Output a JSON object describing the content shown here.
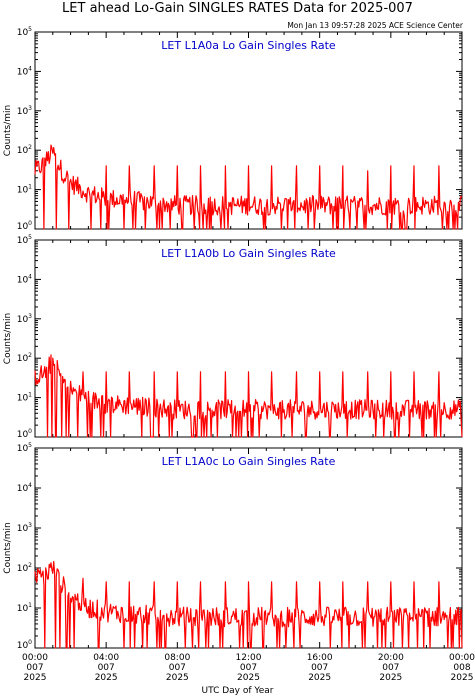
{
  "title": "LET ahead Lo-Gain SINGLES RATES Data for 2025-007",
  "timestamp": "Mon Jan 13 09:57:28 2025 ACE Science Center",
  "colors": {
    "data": "#ff0000",
    "panel_title": "#0000cc",
    "axes": "#000000"
  },
  "chart_data": [
    {
      "type": "line",
      "title": "LET L1A0a Lo Gain Singles Rate",
      "ylabel": "Counts/min",
      "xlabel": "UTC Day of Year",
      "yscale": "log",
      "ylim": [
        1,
        100000
      ],
      "xlim": [
        0,
        24
      ],
      "grid": false,
      "description_points_hours": [
        0,
        0.5,
        1,
        1.5,
        2,
        3,
        4,
        6,
        8,
        12,
        16,
        20,
        24
      ],
      "values": [
        30,
        45,
        90,
        30,
        15,
        8,
        6,
        5,
        4,
        4,
        4,
        4,
        4
      ],
      "spikes_at_hours": [
        4,
        5.3,
        6.7,
        8,
        9.3,
        10.7,
        12,
        13.3,
        14.7,
        16,
        17.3,
        18.7,
        20,
        21.3,
        22.7
      ],
      "spike_values": [
        40,
        40,
        40,
        40,
        40,
        40,
        40,
        40,
        40,
        40,
        40,
        30,
        40,
        40,
        40
      ]
    },
    {
      "type": "line",
      "title": "LET L1A0b Lo Gain Singles Rate",
      "ylabel": "Counts/min",
      "xlabel": "UTC Day of Year",
      "yscale": "log",
      "ylim": [
        1,
        100000
      ],
      "xlim": [
        0,
        24
      ],
      "grid": false,
      "description_points_hours": [
        0,
        0.5,
        1,
        1.5,
        2,
        3,
        4,
        6,
        8,
        12,
        16,
        20,
        24
      ],
      "values": [
        35,
        40,
        85,
        30,
        16,
        9,
        7,
        6,
        5,
        5,
        5,
        5,
        5
      ],
      "spikes_at_hours": [
        2.7,
        4,
        5.3,
        6.7,
        8,
        9.3,
        10.7,
        12,
        13.3,
        14.7,
        16,
        17.3,
        18.7,
        20,
        21.3,
        22.7
      ],
      "spike_values": [
        45,
        45,
        45,
        45,
        45,
        45,
        45,
        45,
        45,
        45,
        45,
        45,
        45,
        45,
        45,
        45
      ]
    },
    {
      "type": "line",
      "title": "LET L1A0c Lo Gain Singles Rate",
      "ylabel": "Counts/min",
      "xlabel": "UTC Day of Year",
      "yscale": "log",
      "ylim": [
        1,
        100000
      ],
      "xlim": [
        0,
        24
      ],
      "grid": false,
      "description_points_hours": [
        0,
        0.5,
        1,
        1.5,
        2,
        3,
        4,
        6,
        8,
        12,
        16,
        20,
        24
      ],
      "values": [
        55,
        65,
        100,
        40,
        20,
        10,
        8,
        7,
        6,
        6,
        6,
        6,
        6
      ],
      "spikes_at_hours": [
        2.7,
        4,
        5.3,
        6.7,
        8,
        9.3,
        10.7,
        12,
        13.3,
        14.7,
        16,
        17.3,
        18.7,
        20,
        21.3,
        22.7
      ],
      "spike_values": [
        55,
        45,
        45,
        45,
        45,
        45,
        45,
        45,
        45,
        45,
        45,
        45,
        45,
        45,
        45,
        45
      ]
    }
  ],
  "xaxis": {
    "ticks": [
      {
        "hour": 0,
        "time": "00:00",
        "day": "007",
        "year": "2025"
      },
      {
        "hour": 4,
        "time": "04:00",
        "day": "007",
        "year": "2025"
      },
      {
        "hour": 8,
        "time": "08:00",
        "day": "007",
        "year": "2025"
      },
      {
        "hour": 12,
        "time": "12:00",
        "day": "007",
        "year": "2025"
      },
      {
        "hour": 16,
        "time": "16:00",
        "day": "007",
        "year": "2025"
      },
      {
        "hour": 20,
        "time": "20:00",
        "day": "007",
        "year": "2025"
      },
      {
        "hour": 24,
        "time": "00:00",
        "day": "008",
        "year": "2025"
      }
    ],
    "label": "UTC Day of Year"
  },
  "yaxis": {
    "base": "10",
    "exponents": [
      "0",
      "1",
      "2",
      "3",
      "4",
      "5"
    ]
  }
}
